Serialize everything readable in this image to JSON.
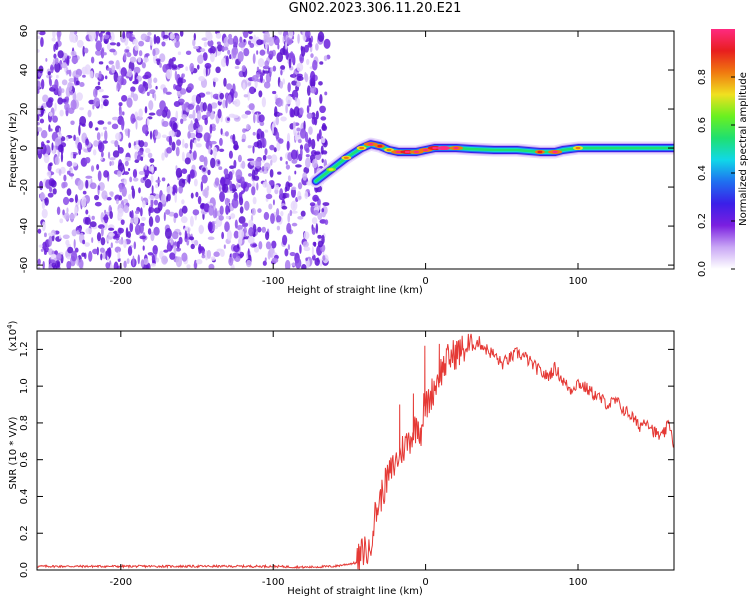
{
  "title": "GN02.2023.306.11.20.E21",
  "colors": {
    "axis": "#000000",
    "snr_line": "#e53935",
    "noise_purple": "#7b1fe0",
    "colormap": [
      "#ffffff",
      "#c9a7f5",
      "#7b1fe0",
      "#3a1fe8",
      "#1f6ff0",
      "#10d8e8",
      "#1fe070",
      "#6af020",
      "#f0e020",
      "#f07a10",
      "#e81e1e",
      "#ff2a80"
    ]
  },
  "chart_data": [
    {
      "type": "heatmap",
      "title": "",
      "xlabel": "Height of straight line (km)",
      "ylabel": "Frequency (Hz)",
      "xlim": [
        -255,
        163
      ],
      "ylim": [
        -62,
        60
      ],
      "xticks": [
        -200,
        -100,
        0,
        100
      ],
      "yticks": [
        60,
        40,
        20,
        0,
        -20,
        -40,
        -60
      ],
      "colorbar": {
        "label": "Normalized spectral amplitude",
        "range": [
          0.0,
          1.0
        ],
        "ticks": [
          "0.0",
          "0.2",
          "0.4",
          "0.6",
          "0.8"
        ],
        "tick_values": [
          0.0,
          0.2,
          0.4,
          0.6,
          0.8
        ]
      },
      "noise_region": {
        "x_from": -255,
        "x_to": -65,
        "amplitude": 0.15
      },
      "track": {
        "x": [
          -72,
          -62,
          -52,
          -42,
          -36,
          -30,
          -24,
          -18,
          -12,
          -6,
          0,
          6,
          12,
          20,
          30,
          45,
          60,
          75,
          85,
          90,
          100,
          115,
          130,
          145,
          163
        ],
        "freq_hz": [
          -17,
          -11,
          -5,
          0,
          2,
          1,
          -1,
          -2,
          -2,
          -2,
          -1,
          0,
          0,
          0,
          -0.5,
          -1,
          -1,
          -2,
          -2,
          -1,
          0,
          0,
          0,
          0,
          0
        ],
        "amplitude": [
          0.55,
          0.7,
          0.75,
          0.8,
          0.9,
          0.85,
          0.8,
          0.9,
          0.95,
          0.9,
          0.9,
          0.95,
          1.0,
          0.9,
          0.6,
          0.5,
          0.55,
          0.85,
          0.9,
          0.6,
          0.75,
          0.5,
          0.45,
          0.4,
          0.35
        ]
      }
    },
    {
      "type": "line",
      "title": "",
      "xlabel": "Height of straight line (km)",
      "ylabel": "SNR (10 * V/V)",
      "y_multiplier_label": "(x10",
      "y_multiplier_exp": "4",
      "xlim": [
        -255,
        163
      ],
      "ylim": [
        0,
        1.3
      ],
      "xticks": [
        -200,
        -100,
        0,
        100
      ],
      "yticks": [
        0.0,
        0.2,
        0.4,
        0.6,
        0.8,
        1.0,
        1.2
      ],
      "ytick_labels": [
        "0.0",
        "0.2",
        "0.4",
        "0.6",
        "0.8",
        "1.0",
        "1.2"
      ],
      "series": [
        {
          "x": [
            -255,
            -220,
            -180,
            -140,
            -100,
            -80,
            -60,
            -45,
            -40,
            -37,
            -35,
            -33,
            -30,
            -25,
            -20,
            -15,
            -10,
            -5,
            -3,
            -1,
            0,
            2,
            5,
            10,
            15,
            20,
            25,
            30,
            35,
            40,
            45,
            50,
            55,
            60,
            65,
            70,
            75,
            80,
            85,
            90,
            95,
            100,
            105,
            110,
            115,
            120,
            125,
            130,
            135,
            140,
            145,
            150,
            155,
            160,
            163
          ],
          "values": [
            0.02,
            0.02,
            0.02,
            0.02,
            0.02,
            0.015,
            0.02,
            0.04,
            0.12,
            0.08,
            0.22,
            0.3,
            0.38,
            0.5,
            0.58,
            0.66,
            0.72,
            0.8,
            0.75,
            0.9,
            0.88,
            0.92,
            0.98,
            1.08,
            1.15,
            1.18,
            1.2,
            1.22,
            1.24,
            1.2,
            1.17,
            1.12,
            1.15,
            1.18,
            1.16,
            1.12,
            1.08,
            1.05,
            1.1,
            1.03,
            0.98,
            1.02,
            0.99,
            0.96,
            0.93,
            0.9,
            0.92,
            0.87,
            0.84,
            0.78,
            0.82,
            0.75,
            0.72,
            0.8,
            0.68
          ],
          "spikes": [
            {
              "x": -0.5,
              "value": 1.22
            },
            {
              "x": 9,
              "value": 1.23
            },
            {
              "x": -17,
              "value": 0.9
            },
            {
              "x": -8,
              "value": 0.96
            }
          ]
        }
      ]
    }
  ]
}
